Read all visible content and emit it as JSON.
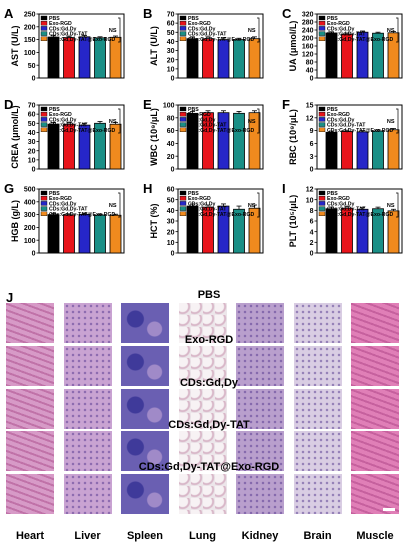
{
  "panel_a_to_i": {
    "legend": [
      "PBS",
      "Exo-RGD",
      "CDs:Gd,Dy",
      "CDs:Gd,Dy-TAT",
      "CDs:Gd,Dy-TAT@Exo-RGD"
    ],
    "ns_label": "NS",
    "colors": {
      "PBS": "#000000",
      "Exo-RGD": "#e8141b",
      "CDs:Gd,Dy": "#2626c8",
      "CDs:Gd,Dy-TAT": "#1a8f86",
      "CDs:Gd,Dy-TAT@Exo-RGD": "#f08a1e"
    }
  },
  "chart_data": [
    {
      "type": "bar",
      "panel_letter": "A",
      "ylabel": "AST (U/L)",
      "yticks": [
        "0",
        "50",
        "100",
        "150",
        "200",
        "250"
      ],
      "ylim": [
        0,
        250
      ],
      "categories": [
        "PBS",
        "Exo-RGD",
        "CDs:Gd,Dy",
        "CDs:Gd,Dy-TAT",
        "CDs:Gd,Dy-TAT@Exo-RGD"
      ],
      "values": [
        160,
        158,
        161,
        157,
        159
      ],
      "errors": [
        5,
        5,
        5,
        4,
        5
      ]
    },
    {
      "type": "bar",
      "panel_letter": "B",
      "ylabel": "ALT (U/L)",
      "yticks": [
        "0",
        "10",
        "20",
        "30",
        "40",
        "50",
        "60",
        "70"
      ],
      "ylim": [
        0,
        70
      ],
      "categories": [
        "PBS",
        "Exo-RGD",
        "CDs:Gd,Dy",
        "CDs:Gd,Dy-TAT",
        "CDs:Gd,Dy-TAT@Exo-RGD"
      ],
      "values": [
        43,
        43,
        42,
        42,
        43
      ],
      "errors": [
        2,
        2,
        2,
        1.5,
        2
      ]
    },
    {
      "type": "bar",
      "panel_letter": "C",
      "ylabel": "UA (μmol/L)",
      "yticks": [
        "0",
        "40",
        "80",
        "120",
        "160",
        "200",
        "240",
        "280",
        "320"
      ],
      "ylim": [
        0,
        320
      ],
      "categories": [
        "PBS",
        "Exo-RGD",
        "CDs:Gd,Dy",
        "CDs:Gd,Dy-TAT",
        "CDs:Gd,Dy-TAT@Exo-RGD"
      ],
      "values": [
        225,
        219,
        229,
        224,
        226
      ],
      "errors": [
        6,
        6,
        6,
        5,
        6
      ]
    },
    {
      "type": "bar",
      "panel_letter": "D",
      "ylabel": "CREA (μmol/L)",
      "yticks": [
        "0",
        "10",
        "20",
        "30",
        "40",
        "50",
        "60",
        "70"
      ],
      "ylim": [
        0,
        70
      ],
      "categories": [
        "PBS",
        "Exo-RGD",
        "CDs:Gd,Dy",
        "CDs:Gd,Dy-TAT",
        "CDs:Gd,Dy-TAT@Exo-RGD"
      ],
      "values": [
        49,
        49,
        48,
        50,
        49
      ],
      "errors": [
        2,
        2,
        2,
        2,
        2
      ]
    },
    {
      "type": "bar",
      "panel_letter": "E",
      "ylabel": "WBC (10⁹/μL)",
      "yticks": [
        "0",
        "20",
        "40",
        "60",
        "80",
        "100"
      ],
      "ylim": [
        0,
        100
      ],
      "categories": [
        "PBS",
        "Exo-RGD",
        "CDs:Gd,Dy",
        "CDs:Gd,Dy-TAT",
        "CDs:Gd,Dy-TAT@Exo-RGD"
      ],
      "values": [
        87,
        88,
        88,
        87,
        88
      ],
      "errors": [
        3,
        3,
        3,
        3,
        3
      ]
    },
    {
      "type": "bar",
      "panel_letter": "F",
      "ylabel": "RBC (10⁹/μL)",
      "yticks": [
        "0",
        "3",
        "6",
        "9",
        "12",
        "15"
      ],
      "ylim": [
        0,
        15
      ],
      "categories": [
        "PBS",
        "Exo-RGD",
        "CDs:Gd,Dy",
        "CDs:Gd,Dy-TAT",
        "CDs:Gd,Dy-TAT@Exo-RGD"
      ],
      "values": [
        8.6,
        8.8,
        8.7,
        8.9,
        9.2
      ],
      "errors": [
        0.3,
        0.3,
        0.3,
        0.3,
        0.3
      ]
    },
    {
      "type": "bar",
      "panel_letter": "G",
      "ylabel": "HGB (g/L)",
      "yticks": [
        "0",
        "100",
        "200",
        "300",
        "400",
        "500"
      ],
      "ylim": [
        0,
        500
      ],
      "categories": [
        "PBS",
        "Exo-RGD",
        "CDs:Gd,Dy",
        "CDs:Gd,Dy-TAT",
        "CDs:Gd,Dy-TAT@Exo-RGD"
      ],
      "values": [
        300,
        298,
        302,
        296,
        295
      ],
      "errors": [
        8,
        8,
        8,
        8,
        8
      ]
    },
    {
      "type": "bar",
      "panel_letter": "H",
      "ylabel": "HCT (%)",
      "yticks": [
        "0",
        "10",
        "20",
        "30",
        "40",
        "50",
        "60"
      ],
      "ylim": [
        0,
        60
      ],
      "categories": [
        "PBS",
        "Exo-RGD",
        "CDs:Gd,Dy",
        "CDs:Gd,Dy-TAT",
        "CDs:Gd,Dy-TAT@Exo-RGD"
      ],
      "values": [
        44,
        43,
        44,
        41,
        42
      ],
      "errors": [
        2,
        2,
        2,
        3,
        3
      ]
    },
    {
      "type": "bar",
      "panel_letter": "I",
      "ylabel": "PLT (10⁵/μL)",
      "yticks": [
        "0",
        "2",
        "4",
        "6",
        "8",
        "10",
        "12"
      ],
      "ylim": [
        0,
        12
      ],
      "categories": [
        "PBS",
        "Exo-RGD",
        "CDs:Gd,Dy",
        "CDs:Gd,Dy-TAT",
        "CDs:Gd,Dy-TAT@Exo-RGD"
      ],
      "values": [
        8.3,
        8.4,
        8.2,
        8.3,
        7.9
      ],
      "errors": [
        0.3,
        0.3,
        0.3,
        0.3,
        0.3
      ]
    }
  ],
  "histology": {
    "panel_letter": "J",
    "row_titles": [
      "PBS",
      "Exo-RGD",
      "CDs:Gd,Dy",
      "CDs:Gd,Dy-TAT",
      "CDs:Gd,Dy-TAT@Exo-RGD"
    ],
    "organs": [
      "Heart",
      "Liver",
      "Spleen",
      "Lung",
      "Kidney",
      "Brain",
      "Muscle"
    ],
    "tissue_colors": [
      "#d79ac7",
      "#c9a3d2",
      "#6a5fb2",
      "#ece6ea",
      "#b99fcd",
      "#d9cde3",
      "#e07fb7"
    ]
  }
}
